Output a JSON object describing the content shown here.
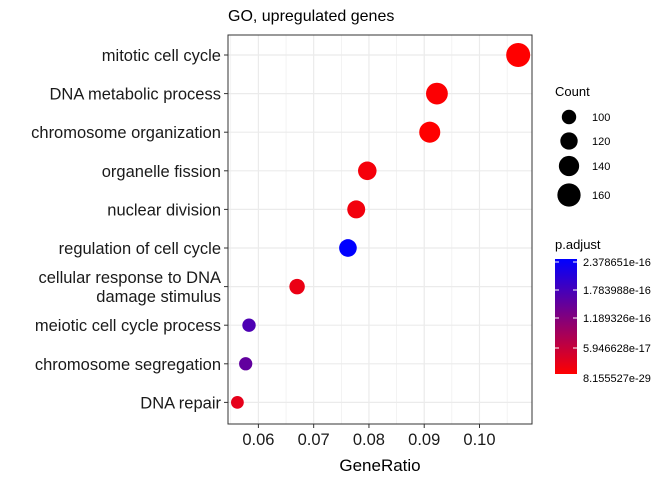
{
  "chart_data": {
    "type": "scatter",
    "title": "GO, upregulated genes",
    "xlabel": "GeneRatio",
    "ylabel": "",
    "xlim": [
      0.0545,
      0.1095
    ],
    "xticks": [
      0.06,
      0.07,
      0.08,
      0.09,
      0.1
    ],
    "xtick_labels": [
      "0.06",
      "0.07",
      "0.08",
      "0.09",
      "0.10"
    ],
    "grid": true,
    "categories": [
      "mitotic cell cycle",
      "DNA metabolic process",
      "chromosome organization",
      "organelle fission",
      "nuclear division",
      "regulation of cell cycle",
      "cellular response to DNA damage stimulus",
      "meiotic cell cycle process",
      "chromosome segregation",
      "DNA repair"
    ],
    "category_lines": [
      [
        "mitotic cell cycle"
      ],
      [
        "DNA metabolic process"
      ],
      [
        "chromosome organization"
      ],
      [
        "organelle fission"
      ],
      [
        "nuclear division"
      ],
      [
        "regulation of cell cycle"
      ],
      [
        "cellular response to DNA",
        "damage stimulus"
      ],
      [
        "meiotic cell cycle process"
      ],
      [
        "chromosome segregation"
      ],
      [
        "DNA repair"
      ]
    ],
    "points": [
      {
        "term": "mitotic cell cycle",
        "gene_ratio": 0.107,
        "count": 165,
        "p_adjust_fraction": 0.0
      },
      {
        "term": "DNA metabolic process",
        "gene_ratio": 0.0923,
        "count": 150,
        "p_adjust_fraction": 0.01
      },
      {
        "term": "chromosome organization",
        "gene_ratio": 0.091,
        "count": 145,
        "p_adjust_fraction": 0.0
      },
      {
        "term": "organelle fission",
        "gene_ratio": 0.0797,
        "count": 128,
        "p_adjust_fraction": 0.04
      },
      {
        "term": "nuclear division",
        "gene_ratio": 0.0777,
        "count": 124,
        "p_adjust_fraction": 0.05
      },
      {
        "term": "regulation of cell cycle",
        "gene_ratio": 0.0762,
        "count": 122,
        "p_adjust_fraction": 1.0
      },
      {
        "term": "cellular response to DNA damage stimulus",
        "gene_ratio": 0.067,
        "count": 107,
        "p_adjust_fraction": 0.08
      },
      {
        "term": "meiotic cell cycle process",
        "gene_ratio": 0.0583,
        "count": 93,
        "p_adjust_fraction": 0.7
      },
      {
        "term": "chromosome segregation",
        "gene_ratio": 0.0577,
        "count": 92,
        "p_adjust_fraction": 0.62
      },
      {
        "term": "DNA repair",
        "gene_ratio": 0.0562,
        "count": 89,
        "p_adjust_fraction": 0.1
      }
    ],
    "size_legend": {
      "title": "Count",
      "values": [
        100,
        120,
        140,
        160
      ],
      "labels": [
        "100",
        "120",
        "140",
        "160"
      ]
    },
    "color_legend": {
      "title": "p.adjust",
      "low_color": "#ff0000",
      "high_color": "#0000ff",
      "labels": [
        "2.378651e-16",
        "1.783988e-16",
        "1.189326e-16",
        "5.946628e-17",
        "8.155527e-29"
      ]
    },
    "colors": {
      "panel_background": "#ffffff",
      "grid": "#ebebeb",
      "panel_border": "#333333"
    }
  }
}
